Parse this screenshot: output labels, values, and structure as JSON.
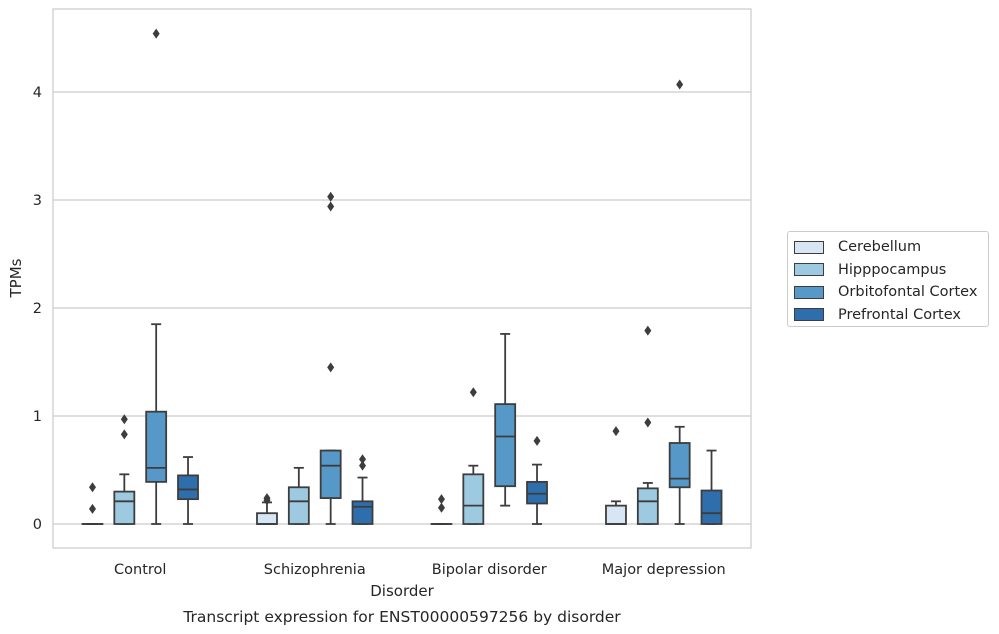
{
  "chart_data": {
    "type": "box",
    "title": "Transcript expression for ENST00000597256 by disorder",
    "xlabel": "Disorder",
    "ylabel": "TPMs",
    "ylim": [
      -0.22,
      4.78
    ],
    "yticks": [
      0,
      1,
      2,
      3,
      4
    ],
    "categories": [
      "Control",
      "Schizophrenia",
      "Bipolar disorder",
      "Major depression"
    ],
    "grid": true,
    "legend_position": "right",
    "series": [
      {
        "name": "Cerebellum",
        "color": "#d6e6f4",
        "boxes": [
          {
            "q1": 0,
            "median": 0,
            "q3": 0,
            "whisker_low": 0,
            "whisker_high": 0,
            "outliers": [
              0.34,
              0.14
            ]
          },
          {
            "q1": 0,
            "median": 0,
            "q3": 0.1,
            "whisker_low": 0,
            "whisker_high": 0.2,
            "outliers": [
              0.24,
              0.22
            ]
          },
          {
            "q1": 0,
            "median": 0,
            "q3": 0,
            "whisker_low": 0,
            "whisker_high": 0,
            "outliers": [
              0.23,
              0.15
            ]
          },
          {
            "q1": 0,
            "median": 0,
            "q3": 0.17,
            "whisker_low": 0,
            "whisker_high": 0.21,
            "outliers": [
              0.86
            ]
          }
        ]
      },
      {
        "name": "Hipppocampus",
        "color": "#9ecae1",
        "boxes": [
          {
            "q1": 0,
            "median": 0.21,
            "q3": 0.3,
            "whisker_low": 0,
            "whisker_high": 0.46,
            "outliers": [
              0.97,
              0.83
            ]
          },
          {
            "q1": 0,
            "median": 0.21,
            "q3": 0.34,
            "whisker_low": 0,
            "whisker_high": 0.52,
            "outliers": []
          },
          {
            "q1": 0,
            "median": 0.17,
            "q3": 0.46,
            "whisker_low": 0,
            "whisker_high": 0.54,
            "outliers": [
              1.22
            ]
          },
          {
            "q1": 0,
            "median": 0.21,
            "q3": 0.33,
            "whisker_low": 0,
            "whisker_high": 0.38,
            "outliers": [
              0.94,
              1.79
            ]
          }
        ]
      },
      {
        "name": "Orbitofontal Cortex",
        "color": "#5698c8",
        "boxes": [
          {
            "q1": 0.39,
            "median": 0.52,
            "q3": 1.04,
            "whisker_low": 0,
            "whisker_high": 1.85,
            "outliers": [
              4.54
            ]
          },
          {
            "q1": 0.24,
            "median": 0.54,
            "q3": 0.68,
            "whisker_low": 0,
            "whisker_high": 0.68,
            "outliers": [
              1.45,
              2.94,
              3.03
            ]
          },
          {
            "q1": 0.35,
            "median": 0.81,
            "q3": 1.11,
            "whisker_low": 0.17,
            "whisker_high": 1.76,
            "outliers": []
          },
          {
            "q1": 0.34,
            "median": 0.42,
            "q3": 0.75,
            "whisker_low": 0,
            "whisker_high": 0.9,
            "outliers": [
              4.07
            ]
          }
        ]
      },
      {
        "name": "Prefrontal Cortex",
        "color": "#2e6eac",
        "boxes": [
          {
            "q1": 0.23,
            "median": 0.32,
            "q3": 0.45,
            "whisker_low": 0,
            "whisker_high": 0.62,
            "outliers": []
          },
          {
            "q1": 0,
            "median": 0.16,
            "q3": 0.21,
            "whisker_low": 0,
            "whisker_high": 0.43,
            "outliers": [
              0.54,
              0.6
            ]
          },
          {
            "q1": 0.19,
            "median": 0.28,
            "q3": 0.39,
            "whisker_low": 0,
            "whisker_high": 0.55,
            "outliers": [
              0.77
            ]
          },
          {
            "q1": 0,
            "median": 0.1,
            "q3": 0.31,
            "whisker_low": 0,
            "whisker_high": 0.68,
            "outliers": []
          }
        ]
      }
    ]
  }
}
